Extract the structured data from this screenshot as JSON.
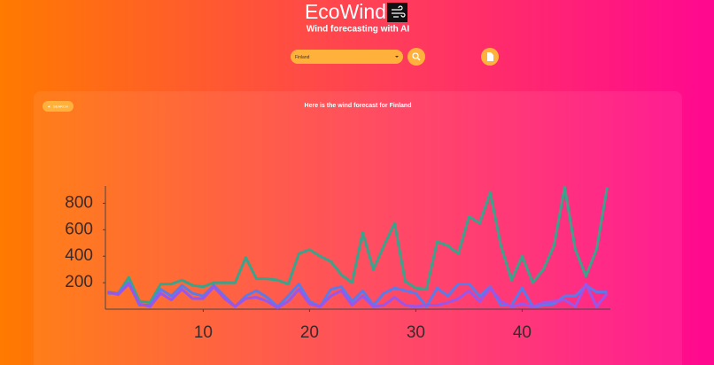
{
  "header": {
    "title": "EcoWind",
    "subtitle": "Wind forecasting with AI"
  },
  "search": {
    "country": "Finland",
    "back_label": "SEARCH"
  },
  "forecast": {
    "title": "Here is the wind forecast for Finland",
    "chart_data": {
      "type": "line",
      "x": [
        1,
        2,
        3,
        4,
        5,
        6,
        7,
        8,
        9,
        10,
        11,
        12,
        13,
        14,
        15,
        16,
        17,
        18,
        19,
        20,
        21,
        22,
        23,
        24,
        25,
        26,
        27,
        28,
        29,
        30,
        31,
        32,
        33,
        34,
        35,
        36,
        37,
        38,
        39,
        40,
        41,
        42,
        43,
        44,
        45,
        46,
        47,
        48
      ],
      "series": [
        {
          "color": "#3aa38a",
          "values": [
            130,
            120,
            240,
            60,
            50,
            190,
            190,
            220,
            180,
            170,
            200,
            200,
            200,
            390,
            230,
            230,
            220,
            190,
            420,
            450,
            400,
            360,
            260,
            200,
            580,
            300,
            480,
            650,
            210,
            160,
            150,
            510,
            480,
            420,
            700,
            650,
            880,
            480,
            220,
            400,
            200,
            300,
            480,
            920,
            450,
            250,
            450,
            920
          ]
        },
        {
          "color": "#5b7be8",
          "values": [
            120,
            120,
            200,
            30,
            30,
            150,
            100,
            180,
            120,
            100,
            180,
            100,
            20,
            100,
            140,
            90,
            20,
            100,
            190,
            60,
            20,
            150,
            170,
            60,
            140,
            30,
            120,
            160,
            140,
            120,
            20,
            160,
            100,
            190,
            190,
            100,
            170,
            30,
            30,
            160,
            20,
            30,
            40,
            100,
            100,
            180,
            130,
            130
          ]
        },
        {
          "color": "#9b55e8",
          "values": [
            130,
            110,
            190,
            40,
            20,
            120,
            70,
            150,
            80,
            80,
            170,
            80,
            20,
            80,
            90,
            60,
            10,
            60,
            150,
            40,
            20,
            100,
            140,
            30,
            100,
            20,
            30,
            90,
            30,
            20,
            30,
            30,
            50,
            80,
            140,
            60,
            160,
            60,
            20,
            40,
            20,
            50,
            60,
            70,
            20,
            190,
            20,
            120
          ]
        }
      ],
      "xlim": [
        0.8,
        48.3
      ],
      "ylim": [
        0,
        930
      ],
      "xticks": [
        10,
        20,
        30,
        40
      ],
      "yticks": [
        200,
        400,
        600,
        800
      ]
    }
  }
}
